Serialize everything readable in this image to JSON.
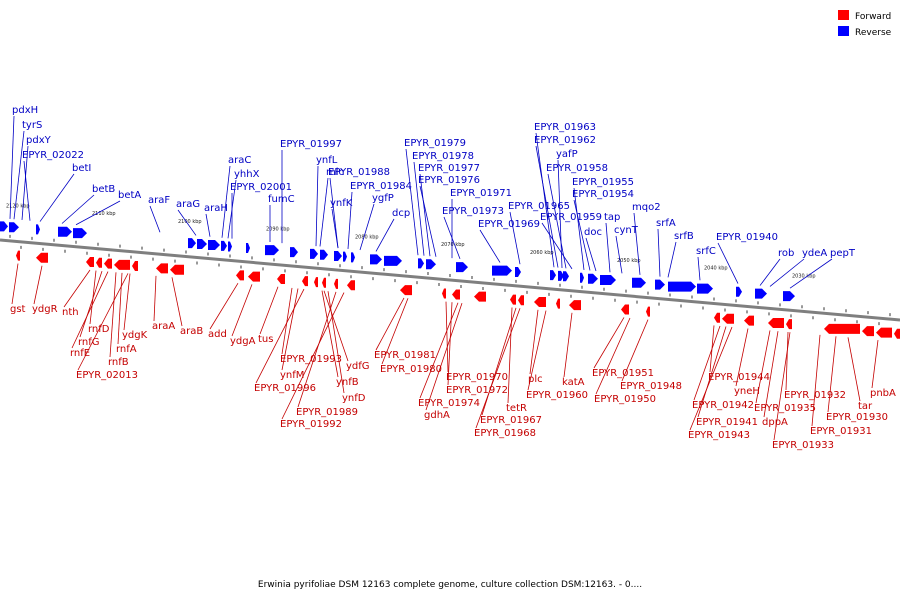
{
  "legend": [
    {
      "label": "Forward",
      "color": "#ff0000"
    },
    {
      "label": "Reverse",
      "color": "#0000ff"
    }
  ],
  "colors": {
    "forward": "#ff0000",
    "reverse": "#0000ff",
    "backbone": "#7f7f7f",
    "forward_text": "#c40000",
    "reverse_text": "#0000c4"
  },
  "caption": "Erwinia pyrifoliae DSM 12163 complete genome, culture collection DSM:12163. - 0....",
  "scale_ticks": [
    "2120 kbp",
    "2110 kbp",
    "2100 kbp",
    "2090 kbp",
    "2080 kbp",
    "2070 kbp",
    "2060 kbp",
    "2050 kbp",
    "2040 kbp",
    "2030 kbp"
  ],
  "reverse_genes": [
    "pdxH",
    "tyrS",
    "pdxY",
    "EPYR_02022",
    "betI",
    "betB",
    "betA",
    "araF",
    "araG",
    "araH",
    "araC",
    "yhhX",
    "EPYR_02001",
    "fumC",
    "EPYR_01997",
    "ynfL",
    "mlc",
    "EPYR_01988",
    "ynfK",
    "EPYR_01984",
    "ygfP",
    "dcp",
    "EPYR_01979",
    "EPYR_01978",
    "EPYR_01977",
    "EPYR_01976",
    "EPYR_01971",
    "EPYR_01973",
    "EPYR_01969",
    "EPYR_01965",
    "EPYR_01963",
    "EPYR_01962",
    "yafP",
    "EPYR_01958",
    "EPYR_01959",
    "EPYR_01955",
    "EPYR_01954",
    "doc",
    "tap",
    "cynT",
    "mqo2",
    "srfA",
    "srfB",
    "srfC",
    "EPYR_01940",
    "rob",
    "ydeA",
    "pepT"
  ],
  "forward_genes": [
    "gst",
    "ydgR",
    "nth",
    "rnfD",
    "rnfG",
    "rnfE",
    "rnfB",
    "rnfA",
    "ydgK",
    "EPYR_02013",
    "araA",
    "araB",
    "add",
    "ydgA",
    "tus",
    "EPYR_01993",
    "ynfM",
    "EPYR_01996",
    "ydfG",
    "ynfB",
    "ynfD",
    "EPYR_01989",
    "EPYR_01992",
    "EPYR_01981",
    "EPYR_01980",
    "EPYR_01970",
    "EPYR_01972",
    "EPYR_01974",
    "gdhA",
    "tetR",
    "EPYR_01967",
    "EPYR_01968",
    "plc",
    "katA",
    "EPYR_01960",
    "EPYR_01951",
    "EPYR_01948",
    "EPYR_01950",
    "EPYR_01944",
    "EPYR_01942",
    "EPYR_01941",
    "EPYR_01943",
    "yneH",
    "EPYR_01932",
    "EPYR_01935",
    "dppA",
    "EPYR_01933",
    "EPYR_01931",
    "EPYR_01930",
    "tar",
    "pnbA"
  ]
}
